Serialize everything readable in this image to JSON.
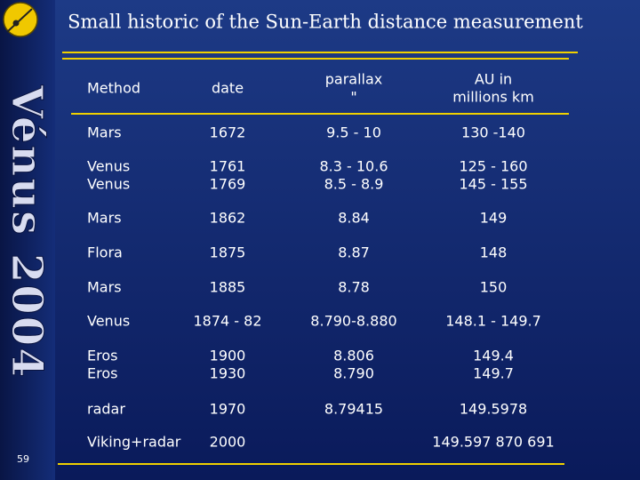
{
  "title": "Small historic of the Sun-Earth distance measurement",
  "side_text": "Vénus 2004",
  "page_number": "59",
  "table": {
    "header": [
      [
        "Method"
      ],
      [
        "date"
      ],
      [
        "parallax",
        "\""
      ],
      [
        "AU in",
        "millions km"
      ]
    ],
    "rows": [
      [
        [
          "Mars"
        ],
        [
          "1672"
        ],
        [
          "9.5 - 10"
        ],
        [
          "130 -140"
        ]
      ],
      [
        [
          "Venus",
          "Venus"
        ],
        [
          "1761",
          "1769"
        ],
        [
          "8.3 - 10.6",
          "8.5 - 8.9"
        ],
        [
          "125 - 160",
          "145 - 155"
        ]
      ],
      [
        [
          "Mars"
        ],
        [
          "1862"
        ],
        [
          "8.84"
        ],
        [
          "149"
        ]
      ],
      [
        [
          "Flora"
        ],
        [
          "1875"
        ],
        [
          "8.87"
        ],
        [
          "148"
        ]
      ],
      [
        [
          "Mars"
        ],
        [
          "1885"
        ],
        [
          "8.78"
        ],
        [
          "150"
        ]
      ],
      [
        [
          "Venus"
        ],
        [
          "1874 - 82"
        ],
        [
          "8.790-8.880"
        ],
        [
          "148.1 - 149.7"
        ]
      ],
      [
        [
          "Eros",
          "Eros"
        ],
        [
          "1900",
          "1930"
        ],
        [
          "8.806",
          "8.790"
        ],
        [
          "149.4",
          "149.7"
        ]
      ],
      [
        [
          "radar"
        ],
        [
          "1970"
        ],
        [
          "8.79415"
        ],
        [
          "149.5978"
        ]
      ],
      [
        [
          "Viking+radar"
        ],
        [
          "2000"
        ],
        [],
        [
          "149.597 870 691"
        ]
      ]
    ]
  }
}
